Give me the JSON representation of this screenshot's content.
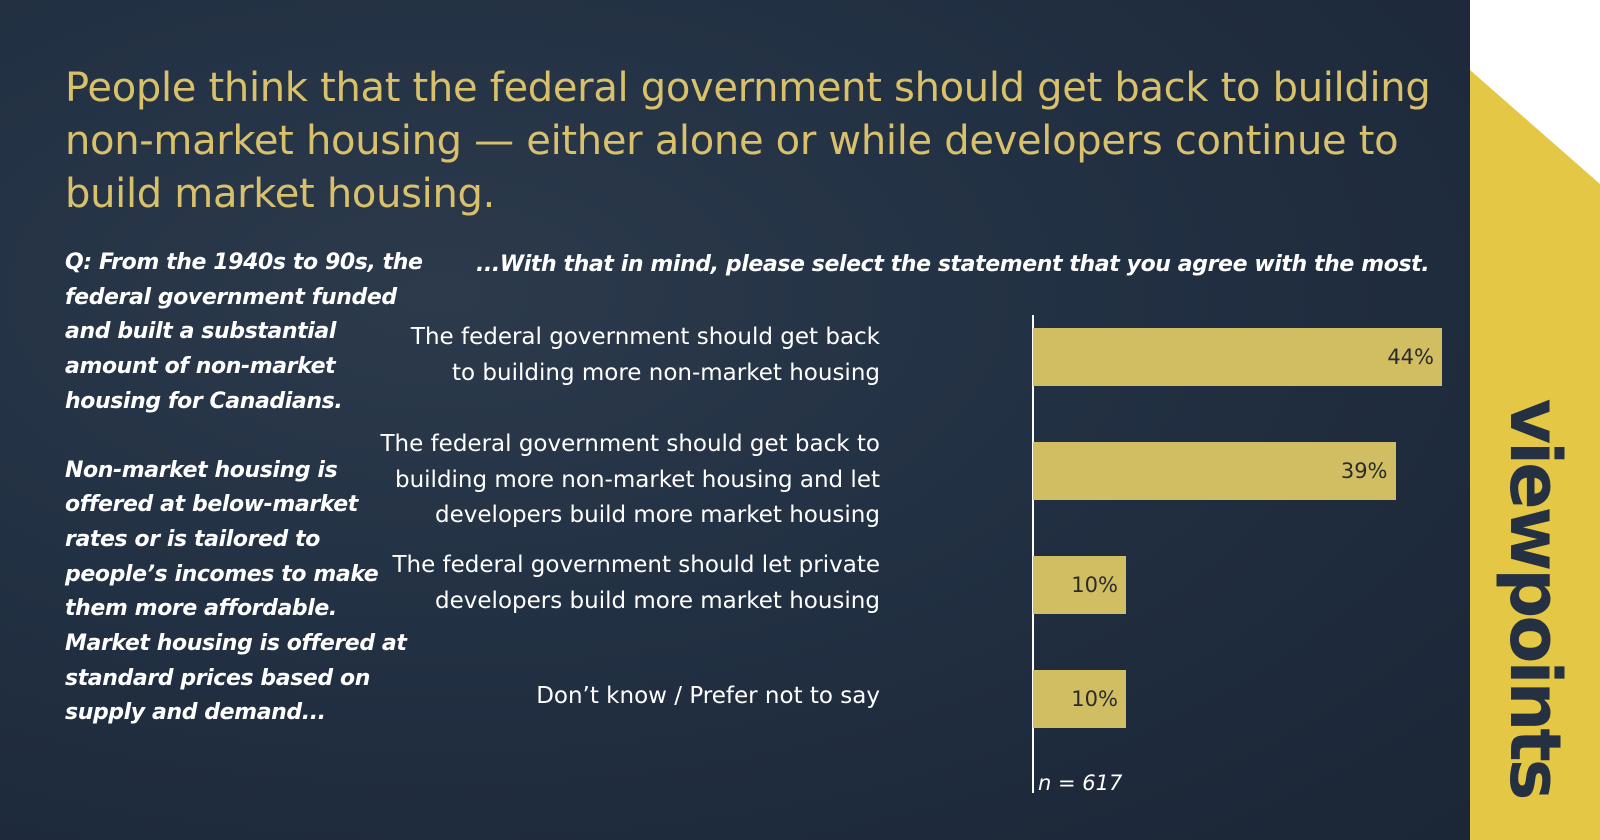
{
  "title": "People think that the federal government should get back to building non-market housing — either alone or while  developers continue to build market housing.",
  "question": {
    "paragraph1": "Q: From the 1940s to 90s, the federal government funded and built a substantial amount of non-market housing for Canadians.",
    "paragraph2": "Non-market housing is offered at below-market rates or is tailored to people’s incomes to make them more affordable. Market housing is offered at standard prices based on supply and demand..."
  },
  "prompt": "...With that in mind, please select the statement that you agree with the most.",
  "brand": "viewpoints",
  "colors": {
    "background": "#1f2b3b",
    "title": "#d9c06a",
    "bar": "#d2be62",
    "accent_panel": "#e4c744"
  },
  "chart_data": {
    "type": "bar",
    "orientation": "horizontal",
    "categories": [
      "The federal government should get back to building more non-market housing",
      "The federal government should get back to building more non-market housing and let developers build more market housing",
      "The federal government should let private developers build more market housing",
      "Don’t know / Prefer not to say"
    ],
    "values": [
      44,
      39,
      10,
      10
    ],
    "value_labels": [
      "44%",
      "39%",
      "10%",
      "10%"
    ],
    "unit": "%",
    "xlim": [
      0,
      50
    ],
    "grid": false,
    "legend": "none",
    "note": "n = 617"
  }
}
